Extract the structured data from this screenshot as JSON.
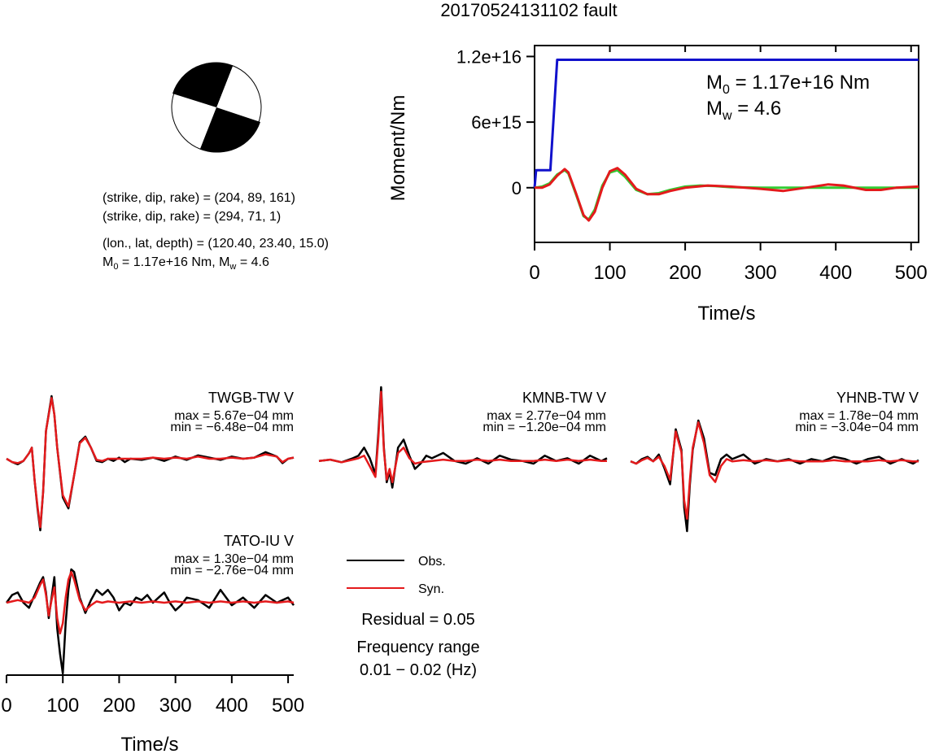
{
  "title": "20170524131102 fault",
  "colors": {
    "observed": "#000000",
    "synthetic": "#e41a1c",
    "moment_rate": "#1111cc",
    "moment_green": "#33cc33",
    "beachball_fill": "#000000"
  },
  "info": {
    "plane1": "(strike, dip, rake) = (204, 89, 161)",
    "plane2": "(strike, dip, rake) = (294, 71, 1)",
    "location": "(lon., lat, depth) = (120.40, 23.40, 15.0)",
    "m0_prefix": "M",
    "m0_sub": "0",
    "m0_value": " = 1.17e+16 Nm, M",
    "mw_sub": "w",
    "mw_value": " = 4.6"
  },
  "moment_panel": {
    "ylabel": "Moment/Nm",
    "xlabel": "Time/s",
    "m0_label_prefix": "M",
    "m0_label_sub": "0",
    "m0_label_value": " = 1.17e+16 Nm",
    "mw_label_prefix": "M",
    "mw_label_sub": "w",
    "mw_label_value": " = 4.6"
  },
  "legend": {
    "obs": "Obs.",
    "syn": "Syn.",
    "residual": "Residual = 0.05",
    "freq_title": "Frequency range",
    "freq_value": "0.01 − 0.02 (Hz)"
  },
  "wave_xaxis": {
    "xlabel": "Time/s",
    "xlim": [
      0,
      510
    ],
    "ticks": [
      "0",
      "100",
      "200",
      "300",
      "400",
      "500"
    ]
  },
  "chart_data": [
    {
      "type": "line",
      "name": "moment-function",
      "xlabel": "Time/s",
      "ylabel": "Moment/Nm",
      "xlim": [
        0,
        510
      ],
      "ylim": [
        -5000000000000000.0,
        1.3e+16
      ],
      "xticks": [
        0,
        100,
        200,
        300,
        400,
        500
      ],
      "xtick_labels": [
        "0",
        "100",
        "200",
        "300",
        "400",
        "500"
      ],
      "yticks": [
        0,
        6000000000000000.0,
        1.2e+16
      ],
      "ytick_labels": [
        "0",
        "6e+15",
        "1.2e+16"
      ],
      "series": [
        {
          "color": "#1111cc",
          "x": [
            0,
            2,
            3,
            20,
            21,
            30,
            510
          ],
          "y": [
            0,
            1600000000000000.0,
            1600000000000000.0,
            1600000000000000.0,
            1600000000000000.0,
            1.17e+16,
            1.17e+16
          ]
        },
        {
          "color": "#33cc33",
          "x": [
            0,
            10,
            20,
            30,
            40,
            45,
            55,
            65,
            72,
            80,
            90,
            100,
            110,
            120,
            135,
            150,
            165,
            180,
            200,
            220,
            240,
            260,
            300,
            350,
            400,
            450,
            510
          ],
          "y": [
            0,
            100000000000000.0,
            400000000000000.0,
            1200000000000000.0,
            1600000000000000.0,
            1300000000000000.0,
            -600000000000000.0,
            -2600000000000000.0,
            -2900000000000000.0,
            -2000000000000000.0,
            200000000000000.0,
            1400000000000000.0,
            1600000000000000.0,
            1000000000000000.0,
            -200000000000000.0,
            -600000000000000.0,
            -500000000000000.0,
            -200000000000000.0,
            100000000000000.0,
            200000000000000.0,
            150000000000000.0,
            50000000000000.0,
            0,
            0,
            0,
            0,
            0
          ]
        },
        {
          "color": "#e41a1c",
          "x": [
            0,
            10,
            20,
            30,
            40,
            45,
            55,
            65,
            72,
            80,
            90,
            100,
            110,
            120,
            135,
            150,
            165,
            180,
            200,
            230,
            260,
            300,
            330,
            360,
            390,
            410,
            440,
            460,
            480,
            510
          ],
          "y": [
            0,
            0,
            300000000000000.0,
            1100000000000000.0,
            1700000000000000.0,
            1400000000000000.0,
            -500000000000000.0,
            -2500000000000000.0,
            -3000000000000000.0,
            -2200000000000000.0,
            0,
            1500000000000000.0,
            1800000000000000.0,
            1200000000000000.0,
            -100000000000000.0,
            -600000000000000.0,
            -600000000000000.0,
            -300000000000000.0,
            0,
            200000000000000.0,
            100000000000000.0,
            -100000000000000.0,
            -300000000000000.0,
            0,
            300000000000000.0,
            200000000000000.0,
            -200000000000000.0,
            -200000000000000.0,
            0,
            100000000000000.0
          ]
        }
      ]
    },
    {
      "type": "line",
      "name": "TWGB-TW V",
      "label": "TWGB-TW V",
      "max_label": "max = 5.67e−04 mm",
      "min_label": "min = −6.48e−04 mm",
      "xlim": [
        0,
        510
      ],
      "ylim": [
        -0.000648,
        0.000567
      ],
      "series": [
        {
          "name": "Obs.",
          "x": [
            0,
            10,
            20,
            30,
            40,
            45,
            50,
            55,
            60,
            65,
            70,
            80,
            85,
            90,
            100,
            110,
            120,
            130,
            140,
            150,
            160,
            170,
            180,
            190,
            200,
            210,
            220,
            240,
            260,
            280,
            300,
            320,
            340,
            360,
            380,
            400,
            420,
            440,
            460,
            480,
            490,
            500,
            510
          ],
          "y": [
            0,
            -3e-05,
            -5e-05,
            -2e-05,
            5e-05,
            0.0001,
            -0.0002,
            -0.00045,
            -0.000648,
            -0.0003,
            0.00025,
            0.000567,
            0.0004,
            0.0001,
            -0.00035,
            -0.00045,
            -0.00015,
            0.00015,
            0.0002,
            0.0001,
            -2e-05,
            -3e-05,
            0,
            -2e-05,
            1e-05,
            -3e-05,
            0,
            -1e-05,
            1e-05,
            -2e-05,
            2e-05,
            -1e-05,
            3e-05,
            1e-05,
            -1e-05,
            2e-05,
            0,
            1e-05,
            6e-05,
            2e-05,
            -4e-05,
            0,
            1e-05
          ]
        },
        {
          "name": "Syn.",
          "x": [
            0,
            10,
            20,
            30,
            40,
            45,
            50,
            55,
            60,
            65,
            70,
            80,
            85,
            90,
            100,
            110,
            120,
            130,
            140,
            150,
            160,
            170,
            180,
            200,
            220,
            240,
            260,
            280,
            300,
            320,
            340,
            360,
            380,
            400,
            420,
            440,
            460,
            480,
            490,
            500,
            510
          ],
          "y": [
            0,
            -3e-05,
            -4e-05,
            -2e-05,
            5e-05,
            0.0001,
            -0.0002,
            -0.00043,
            -0.00062,
            -0.0003,
            0.00025,
            0.00055,
            0.0004,
            0.0001,
            -0.00033,
            -0.00043,
            -0.00015,
            0.00014,
            0.00019,
            0.0001,
            -1e-05,
            -2e-05,
            0,
            0,
            0,
            0,
            1e-05,
            0,
            1e-05,
            0,
            2e-05,
            0,
            0,
            1e-05,
            0,
            1e-05,
            4e-05,
            2e-05,
            -3e-05,
            0,
            1e-05
          ]
        }
      ]
    },
    {
      "type": "line",
      "name": "KMNB-TW V",
      "label": "KMNB-TW V",
      "max_label": "max = 2.77e−04 mm",
      "min_label": "min = −1.20e−04 mm",
      "xlim": [
        0,
        510
      ],
      "ylim": [
        -0.00012,
        0.000277
      ],
      "series": [
        {
          "name": "Obs.",
          "x": [
            0,
            20,
            40,
            60,
            70,
            80,
            90,
            100,
            105,
            110,
            115,
            120,
            125,
            130,
            140,
            150,
            160,
            170,
            180,
            190,
            200,
            220,
            240,
            260,
            280,
            300,
            320,
            340,
            360,
            380,
            400,
            420,
            440,
            460,
            480,
            500,
            510
          ],
          "y": [
            0,
            5e-06,
            -5e-06,
            1e-05,
            2e-05,
            5e-05,
            1e-05,
            -5e-05,
            0.0001,
            0.000277,
            5e-05,
            -8e-05,
            -4e-05,
            -0.0001,
            5e-05,
            8e-05,
            2e-05,
            -3e-05,
            -1e-05,
            2e-05,
            1e-05,
            3e-05,
            0,
            -1e-05,
            1e-05,
            -1e-05,
            2e-05,
            5e-06,
            0,
            -1e-05,
            2e-05,
            0,
            1e-05,
            -1e-05,
            2e-05,
            0,
            1e-05
          ]
        },
        {
          "name": "Syn.",
          "x": [
            0,
            20,
            40,
            60,
            70,
            80,
            90,
            100,
            105,
            110,
            115,
            120,
            125,
            130,
            140,
            150,
            160,
            170,
            180,
            200,
            220,
            240,
            260,
            280,
            300,
            320,
            340,
            360,
            380,
            400,
            420,
            440,
            460,
            480,
            500,
            510
          ],
          "y": [
            0,
            5e-06,
            -5e-06,
            5e-06,
            1e-05,
            2e-05,
            -2e-05,
            -6e-05,
            8e-05,
            0.00026,
            4e-05,
            -7e-05,
            -3e-05,
            -8e-05,
            3e-05,
            5e-05,
            1e-05,
            -1e-05,
            -5e-06,
            0,
            5e-06,
            0,
            0,
            5e-06,
            0,
            5e-06,
            0,
            0,
            0,
            5e-06,
            0,
            5e-06,
            0,
            5e-06,
            0,
            0
          ]
        }
      ]
    },
    {
      "type": "line",
      "name": "YHNB-TW V",
      "label": "YHNB-TW V",
      "max_label": "max = 1.78e−04 mm",
      "min_label": "min = −3.04e−04 mm",
      "xlim": [
        0,
        510
      ],
      "ylim": [
        -0.000304,
        0.000178
      ],
      "series": [
        {
          "name": "Obs.",
          "x": [
            0,
            10,
            20,
            30,
            40,
            50,
            60,
            70,
            80,
            90,
            95,
            100,
            105,
            110,
            120,
            130,
            140,
            150,
            160,
            170,
            180,
            200,
            220,
            240,
            260,
            280,
            300,
            320,
            340,
            360,
            380,
            400,
            420,
            440,
            460,
            480,
            500,
            510
          ],
          "y": [
            0,
            -1e-05,
            1e-05,
            2e-05,
            0,
            3e-05,
            -3e-05,
            -0.0001,
            0.00014,
            5e-05,
            -0.0002,
            -0.000304,
            -0.0001,
            5e-05,
            0.000178,
            0.0001,
            -5e-05,
            -6e-05,
            1e-05,
            3e-05,
            1e-05,
            3e-05,
            -1e-05,
            1e-05,
            0,
            1e-05,
            -1e-05,
            1e-05,
            0,
            2e-05,
            1e-05,
            -1e-05,
            1e-05,
            2e-05,
            -1e-05,
            1e-05,
            -1e-05,
            5e-06
          ]
        },
        {
          "name": "Syn.",
          "x": [
            0,
            10,
            20,
            30,
            40,
            50,
            60,
            70,
            80,
            90,
            95,
            100,
            105,
            110,
            120,
            130,
            140,
            150,
            160,
            170,
            180,
            200,
            220,
            240,
            260,
            280,
            300,
            320,
            340,
            360,
            380,
            400,
            420,
            440,
            460,
            480,
            500,
            510
          ],
          "y": [
            0,
            -1e-05,
            5e-06,
            1.5e-05,
            0,
            2e-05,
            -2e-05,
            -8e-05,
            0.00013,
            4e-05,
            -0.00017,
            -0.00025,
            -8e-05,
            6e-05,
            0.00017,
            8e-05,
            -6e-05,
            -9e-05,
            -2e-05,
            1e-05,
            0,
            5e-06,
            0,
            5e-06,
            0,
            5e-06,
            0,
            0,
            0,
            5e-06,
            0,
            0,
            0,
            5e-06,
            0,
            5e-06,
            0,
            0
          ]
        }
      ]
    },
    {
      "type": "line",
      "name": "TATO-IU V",
      "label": "TATO-IU V",
      "max_label": "max = 1.30e−04 mm",
      "min_label": "min = −2.76e−04 mm",
      "xlim": [
        0,
        510
      ],
      "ylim": [
        -0.000276,
        0.00013
      ],
      "series": [
        {
          "name": "Obs.",
          "x": [
            0,
            10,
            20,
            30,
            40,
            50,
            60,
            65,
            70,
            75,
            80,
            85,
            90,
            95,
            100,
            105,
            110,
            115,
            120,
            130,
            140,
            150,
            160,
            170,
            180,
            190,
            200,
            210,
            220,
            230,
            240,
            250,
            260,
            270,
            280,
            290,
            300,
            310,
            320,
            340,
            360,
            380,
            400,
            420,
            440,
            460,
            480,
            500,
            510
          ],
          "y": [
            0,
            3e-05,
            4e-05,
            0,
            -2e-05,
            3e-05,
            8e-05,
            0.0001,
            4e-05,
            -6e-05,
            2e-05,
            0.0001,
            -0.0001,
            -0.0002,
            -0.000276,
            -8e-05,
            5e-05,
            0.00013,
            0.00012,
            2e-05,
            -4e-05,
            1e-05,
            5e-05,
            3e-05,
            5e-05,
            2e-05,
            -3e-05,
            0,
            -1e-05,
            2e-05,
            1e-05,
            3e-05,
            0,
            2e-05,
            4e-05,
            0,
            -3e-05,
            -1e-05,
            2e-05,
            1e-05,
            -2e-05,
            5e-05,
            -1e-05,
            2e-05,
            -2e-05,
            3e-05,
            0,
            2e-05,
            -1e-05
          ]
        },
        {
          "name": "Syn.",
          "x": [
            0,
            10,
            20,
            30,
            40,
            50,
            60,
            65,
            70,
            75,
            80,
            85,
            90,
            95,
            100,
            105,
            110,
            115,
            120,
            130,
            140,
            150,
            160,
            170,
            180,
            200,
            220,
            240,
            260,
            280,
            300,
            320,
            340,
            360,
            380,
            400,
            420,
            440,
            460,
            480,
            500,
            510
          ],
          "y": [
            0,
            5e-06,
            1e-05,
            5e-06,
            0,
            2e-05,
            7e-05,
            9e-05,
            3e-05,
            -5e-05,
            1e-05,
            6e-05,
            -6e-05,
            -0.00012,
            -8e-05,
            2e-05,
            9e-05,
            0.00012,
            9e-05,
            1e-05,
            -3e-05,
            -1e-05,
            5e-06,
            0,
            5e-06,
            0,
            5e-06,
            0,
            5e-06,
            0,
            5e-06,
            0,
            5e-06,
            0,
            5e-06,
            0,
            5e-06,
            0,
            5e-06,
            0,
            5e-06,
            0
          ]
        }
      ]
    }
  ]
}
